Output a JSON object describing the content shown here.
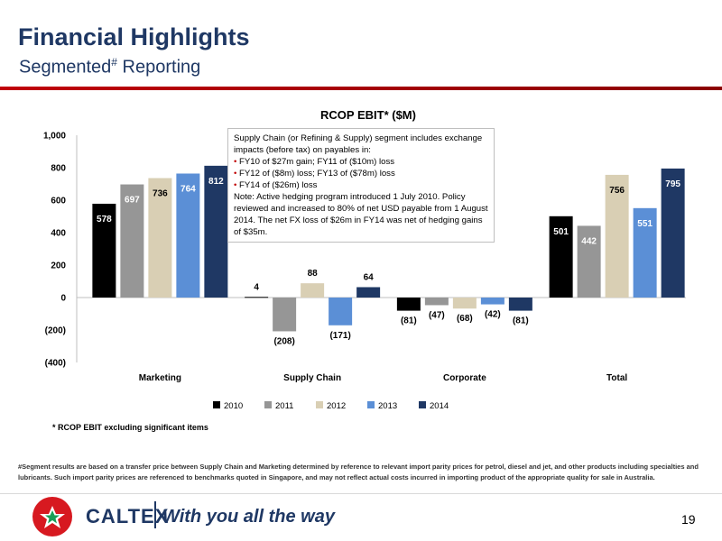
{
  "header": {
    "title": "Financial Highlights",
    "subtitle": "Segmented",
    "subtitle_mark": "#",
    "subtitle_tail": " Reporting"
  },
  "colors": {
    "title": "#1f3864",
    "accent_red": "#c00000",
    "series_2010": "#000000",
    "series_2011": "#969696",
    "series_2012": "#d9cfb4",
    "series_2013": "#5b8fd6",
    "series_2014": "#1f3864"
  },
  "chart_data": {
    "type": "bar",
    "title": "RCOP EBIT* ($M)",
    "categories": [
      "Marketing",
      "Supply Chain",
      "Corporate",
      "Total"
    ],
    "series": [
      {
        "name": "2010",
        "values": [
          578,
          4,
          -81,
          501
        ],
        "labels": [
          "578",
          "4",
          "(81)",
          "501"
        ]
      },
      {
        "name": "2011",
        "values": [
          697,
          -208,
          -47,
          442
        ],
        "labels": [
          "697",
          "(208)",
          "(47)",
          "442"
        ]
      },
      {
        "name": "2012",
        "values": [
          736,
          88,
          -68,
          756
        ],
        "labels": [
          "736",
          "88",
          "(68)",
          "756"
        ]
      },
      {
        "name": "2013",
        "values": [
          764,
          -171,
          -42,
          551
        ],
        "labels": [
          "764",
          "(171)",
          "(42)",
          "551"
        ]
      },
      {
        "name": "2014",
        "values": [
          812,
          64,
          -81,
          795
        ],
        "labels": [
          "812",
          "64",
          "(81)",
          "795"
        ]
      }
    ],
    "ylim": [
      -400,
      1000
    ],
    "yticks": [
      1000,
      800,
      600,
      400,
      200,
      0,
      -200,
      -400
    ],
    "ytick_labels": [
      "1,000",
      "800",
      "600",
      "400",
      "200",
      "0",
      "(200)",
      "(400)"
    ],
    "xlabel": "",
    "ylabel": "",
    "legend": "bottom",
    "grid": false
  },
  "note": {
    "intro": "Supply Chain (or Refining & Supply) segment includes exchange impacts (before tax) on payables in:",
    "bullets": [
      "FY10 of $27m gain; FY11 of ($10m) loss",
      "FY12 of ($8m) loss; FY13 of ($78m) loss",
      "FY14 of ($26m) loss"
    ],
    "bullet_char": "•",
    "text": "Note: Active hedging program introduced 1 July 2010. Policy reviewed and increased to 80% of net USD payable from 1 August 2014. The net FX loss of $26m in FY14 was net of hedging gains of $35m."
  },
  "excl_note": "* RCOP EBIT excluding significant items",
  "footnote": "#Segment results are based on a transfer price between Supply Chain and Marketing determined by reference to relevant import parity prices for petrol, diesel and jet, and other products including specialties and lubricants. Such import parity prices are referenced to benchmarks quoted in Singapore, and may not reflect actual costs incurred in importing product of the appropriate quality for sale in Australia.",
  "footer": {
    "brand": "CALTEX",
    "slogan": "With you all the way",
    "page_number": "19"
  }
}
